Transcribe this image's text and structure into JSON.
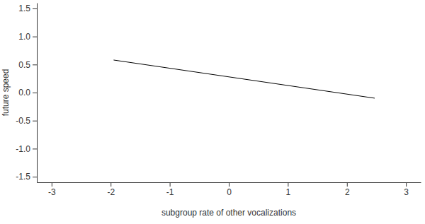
{
  "chart_data": {
    "type": "line",
    "x_label": "subgroup rate of other vocalizations",
    "y_label": "future speed",
    "x": [
      -1.95,
      2.47
    ],
    "values": [
      0.58,
      -0.1
    ],
    "color": "#000000",
    "xlim": [
      -3.25,
      3.25
    ],
    "xticks": [
      -3,
      -2,
      -1,
      0,
      1,
      2,
      3
    ],
    "ylim": [
      -1.6,
      1.6
    ],
    "yticks": [
      -1.5,
      {
        "value": -1.0,
        "label": "-1.0"
      },
      -0.5,
      {
        "value": 0.0,
        "label": "0.0"
      },
      0.5,
      {
        "value": 1.0,
        "label": "1.0"
      },
      1.5
    ],
    "grid": false
  }
}
